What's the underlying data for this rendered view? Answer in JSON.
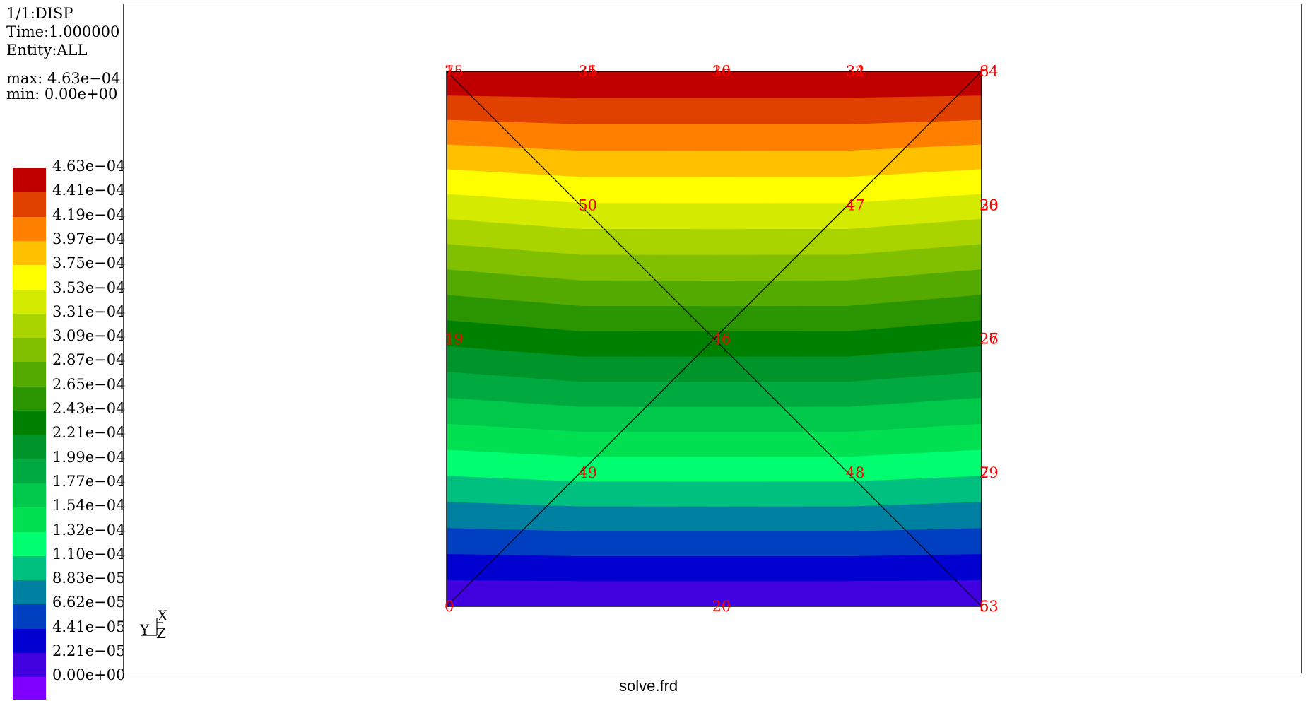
{
  "header": {
    "dataset": "1/1:DISP",
    "time": "Time:1.000000",
    "entity": "Entity:ALL",
    "max": "max: 4.63e−04",
    "min": "min: 0.00e+00"
  },
  "legend": {
    "entries": [
      {
        "label": "4.63e−04",
        "color": "#c00000"
      },
      {
        "label": "4.41e−04",
        "color": "#e04000"
      },
      {
        "label": "4.19e−04",
        "color": "#ff8000"
      },
      {
        "label": "3.97e−04",
        "color": "#ffc000"
      },
      {
        "label": "3.75e−04",
        "color": "#ffff00"
      },
      {
        "label": "3.53e−04",
        "color": "#d4ea00"
      },
      {
        "label": "3.31e−04",
        "color": "#aad400"
      },
      {
        "label": "3.09e−04",
        "color": "#80c000"
      },
      {
        "label": "2.87e−04",
        "color": "#55aa00"
      },
      {
        "label": "2.65e−04",
        "color": "#2a9500"
      },
      {
        "label": "2.43e−04",
        "color": "#008000"
      },
      {
        "label": "2.21e−04",
        "color": "#00952a"
      },
      {
        "label": "1.99e−04",
        "color": "#00aa40"
      },
      {
        "label": "1.77e−04",
        "color": "#00c84a"
      },
      {
        "label": "1.54e−04",
        "color": "#00e050"
      },
      {
        "label": "1.32e−04",
        "color": "#00ff70"
      },
      {
        "label": "1.10e−04",
        "color": "#00c080"
      },
      {
        "label": "8.83e−05",
        "color": "#0080a0"
      },
      {
        "label": "6.62e−05",
        "color": "#0040c0"
      },
      {
        "label": "4.41e−05",
        "color": "#0000d0"
      },
      {
        "label": "2.21e−05",
        "color": "#4000e0"
      },
      {
        "label": "0.00e+00",
        "color": "#8000ff"
      }
    ]
  },
  "nodes": [
    {
      "label": "1",
      "pos": "top-left"
    },
    {
      "label": "75",
      "pos": "top-left"
    },
    {
      "label": "35",
      "pos": "top-q1"
    },
    {
      "label": "31",
      "pos": "top-q1"
    },
    {
      "label": "10",
      "pos": "top-mid"
    },
    {
      "label": "36",
      "pos": "top-mid"
    },
    {
      "label": "32",
      "pos": "top-q3"
    },
    {
      "label": "34",
      "pos": "top-q3"
    },
    {
      "label": "64",
      "pos": "top-right"
    },
    {
      "label": "8",
      "pos": "top-right"
    },
    {
      "label": "50",
      "pos": "row1-q1"
    },
    {
      "label": "47",
      "pos": "row1-q3"
    },
    {
      "label": "30",
      "pos": "row1-right"
    },
    {
      "label": "28",
      "pos": "row1-right"
    },
    {
      "label": "19",
      "pos": "mid-left"
    },
    {
      "label": "46",
      "pos": "center"
    },
    {
      "label": "26",
      "pos": "mid-right"
    },
    {
      "label": "27",
      "pos": "mid-right"
    },
    {
      "label": "49",
      "pos": "row3-q1"
    },
    {
      "label": "48",
      "pos": "row3-q3"
    },
    {
      "label": "29",
      "pos": "row3-right"
    },
    {
      "label": "7",
      "pos": "row3-right"
    },
    {
      "label": "0",
      "pos": "bottom-left"
    },
    {
      "label": "20",
      "pos": "bottom-mid"
    },
    {
      "label": "63",
      "pos": "bottom-right"
    },
    {
      "label": "5",
      "pos": "bottom-right"
    }
  ],
  "axes_triad": {
    "x": "X",
    "y": "Y",
    "z": "Z"
  },
  "footer": {
    "filename": "solve.frd"
  },
  "colors": {
    "node_label": "#ff0000",
    "mesh_line": "#000000"
  }
}
